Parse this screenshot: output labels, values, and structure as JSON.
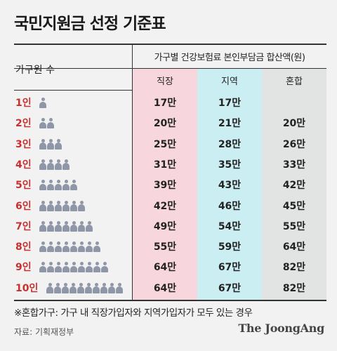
{
  "title": "국민지원금 선정 기준표",
  "table": {
    "category_header": "가구원 수",
    "group_header": "가구별 건강보험료 본인부담금 합산액(원)",
    "columns": [
      "직장",
      "지역",
      "혼합"
    ],
    "rows": [
      {
        "label": "1인",
        "people": 1,
        "values": [
          "17만",
          "17만",
          ""
        ]
      },
      {
        "label": "2인",
        "people": 2,
        "values": [
          "20만",
          "21만",
          "20만"
        ]
      },
      {
        "label": "3인",
        "people": 3,
        "values": [
          "25만",
          "28만",
          "26만"
        ]
      },
      {
        "label": "4인",
        "people": 4,
        "values": [
          "31만",
          "35만",
          "33만"
        ]
      },
      {
        "label": "5인",
        "people": 5,
        "values": [
          "39만",
          "43만",
          "42만"
        ]
      },
      {
        "label": "6인",
        "people": 6,
        "values": [
          "42만",
          "46만",
          "45만"
        ]
      },
      {
        "label": "7인",
        "people": 7,
        "values": [
          "49만",
          "54만",
          "55만"
        ]
      },
      {
        "label": "8인",
        "people": 8,
        "values": [
          "55만",
          "59만",
          "64만"
        ]
      },
      {
        "label": "9인",
        "people": 9,
        "values": [
          "64만",
          "67만",
          "82만"
        ]
      },
      {
        "label": "10인",
        "people": 10,
        "values": [
          "64만",
          "67만",
          "82만"
        ]
      }
    ]
  },
  "note": "※혼합가구: 가구 내 직장가입자와 지역가입자가 모두 있는 경우",
  "source": "자료: 기획재정부",
  "brand": "The JoongAng",
  "colors": {
    "title": "#1a1a1a",
    "row_label": "#c83030",
    "col_workplace": "#f7d7dd",
    "col_regional": "#cbeef3",
    "col_mixed": "#e2e3e3",
    "person_icon": "#8f96a8"
  }
}
